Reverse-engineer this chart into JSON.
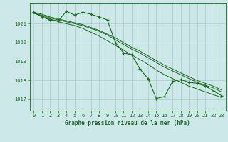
{
  "title": "Graphe pression niveau de la mer (hPa)",
  "background_color": "#cce8e8",
  "plot_bg_color": "#cce8e8",
  "grid_color": "#aacccc",
  "line_color": "#1a6b1a",
  "marker_color": "#1a6b1a",
  "xlim": [
    -0.5,
    23.5
  ],
  "ylim": [
    1016.4,
    1022.1
  ],
  "yticks": [
    1017,
    1018,
    1019,
    1020,
    1021
  ],
  "xticks": [
    0,
    1,
    2,
    3,
    4,
    5,
    6,
    7,
    8,
    9,
    10,
    11,
    12,
    13,
    14,
    15,
    16,
    17,
    18,
    19,
    20,
    21,
    22,
    23
  ],
  "series_plain": [
    [
      1021.55,
      1021.4,
      1021.25,
      1021.1,
      1021.0,
      1020.9,
      1020.75,
      1020.55,
      1020.35,
      1020.1,
      1019.85,
      1019.6,
      1019.35,
      1019.1,
      1018.85,
      1018.55,
      1018.3,
      1018.1,
      1017.9,
      1017.7,
      1017.55,
      1017.4,
      1017.25,
      1017.1
    ],
    [
      1021.55,
      1021.45,
      1021.3,
      1021.2,
      1021.1,
      1021.0,
      1020.9,
      1020.75,
      1020.6,
      1020.4,
      1020.15,
      1019.9,
      1019.65,
      1019.45,
      1019.2,
      1018.95,
      1018.7,
      1018.5,
      1018.3,
      1018.1,
      1017.9,
      1017.75,
      1017.6,
      1017.4
    ],
    [
      1021.6,
      1021.5,
      1021.35,
      1021.25,
      1021.15,
      1021.05,
      1020.95,
      1020.8,
      1020.65,
      1020.45,
      1020.25,
      1020.0,
      1019.75,
      1019.55,
      1019.3,
      1019.05,
      1018.8,
      1018.6,
      1018.4,
      1018.2,
      1018.0,
      1017.85,
      1017.7,
      1017.5
    ]
  ],
  "series_marker": [
    1021.6,
    1021.35,
    1021.2,
    1021.15,
    1021.65,
    1021.45,
    1021.6,
    1021.5,
    1021.35,
    1021.2,
    1020.0,
    1019.45,
    1019.35,
    1018.6,
    1018.1,
    1017.05,
    1017.15,
    1017.95,
    1018.05,
    1017.9,
    1017.85,
    1017.7,
    1017.45,
    1017.2
  ]
}
